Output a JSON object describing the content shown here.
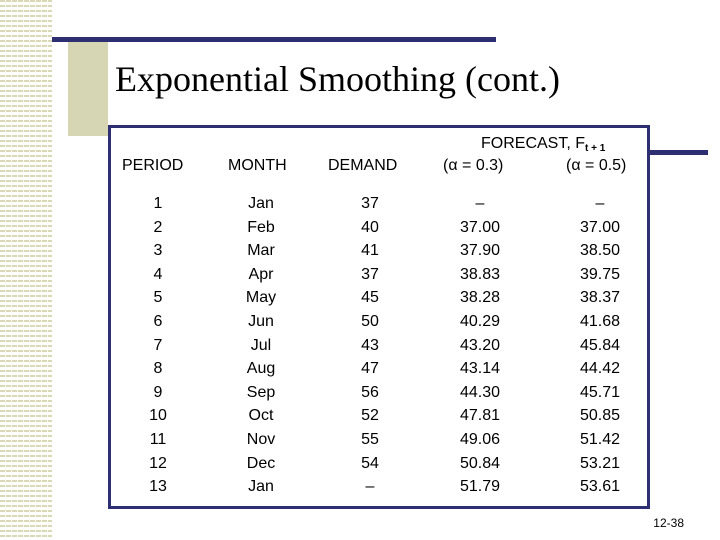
{
  "title": "Exponential Smoothing (cont.)",
  "headers": {
    "period": "PERIOD",
    "month": "MONTH",
    "demand": "DEMAND",
    "forecast": "FORECAST, F",
    "forecast_subscript": "t + 1",
    "alpha1": "(α = 0.3)",
    "alpha2": "(α = 0.5)"
  },
  "columns": {
    "period": [
      "1",
      "2",
      "3",
      "4",
      "5",
      "6",
      "7",
      "8",
      "9",
      "10",
      "11",
      "12",
      "13"
    ],
    "month": [
      "Jan",
      "Feb",
      "Mar",
      "Apr",
      "May",
      "Jun",
      "Jul",
      "Aug",
      "Sep",
      "Oct",
      "Nov",
      "Dec",
      "Jan"
    ],
    "demand": [
      "37",
      "40",
      "41",
      "37",
      "45",
      "50",
      "43",
      "47",
      "56",
      "52",
      "55",
      "54",
      "–"
    ],
    "forecast_03": [
      "–",
      "37.00",
      "37.90",
      "38.83",
      "38.28",
      "40.29",
      "43.20",
      "43.14",
      "44.30",
      "47.81",
      "49.06",
      "50.84",
      "51.79"
    ],
    "forecast_05": [
      "–",
      "37.00",
      "38.50",
      "39.75",
      "38.37",
      "41.68",
      "45.84",
      "44.42",
      "45.71",
      "50.85",
      "51.42",
      "53.21",
      "53.61"
    ]
  },
  "slide_number": "12-38",
  "colors": {
    "accent": "#2e2e73",
    "decor": "#d6d6b4"
  }
}
